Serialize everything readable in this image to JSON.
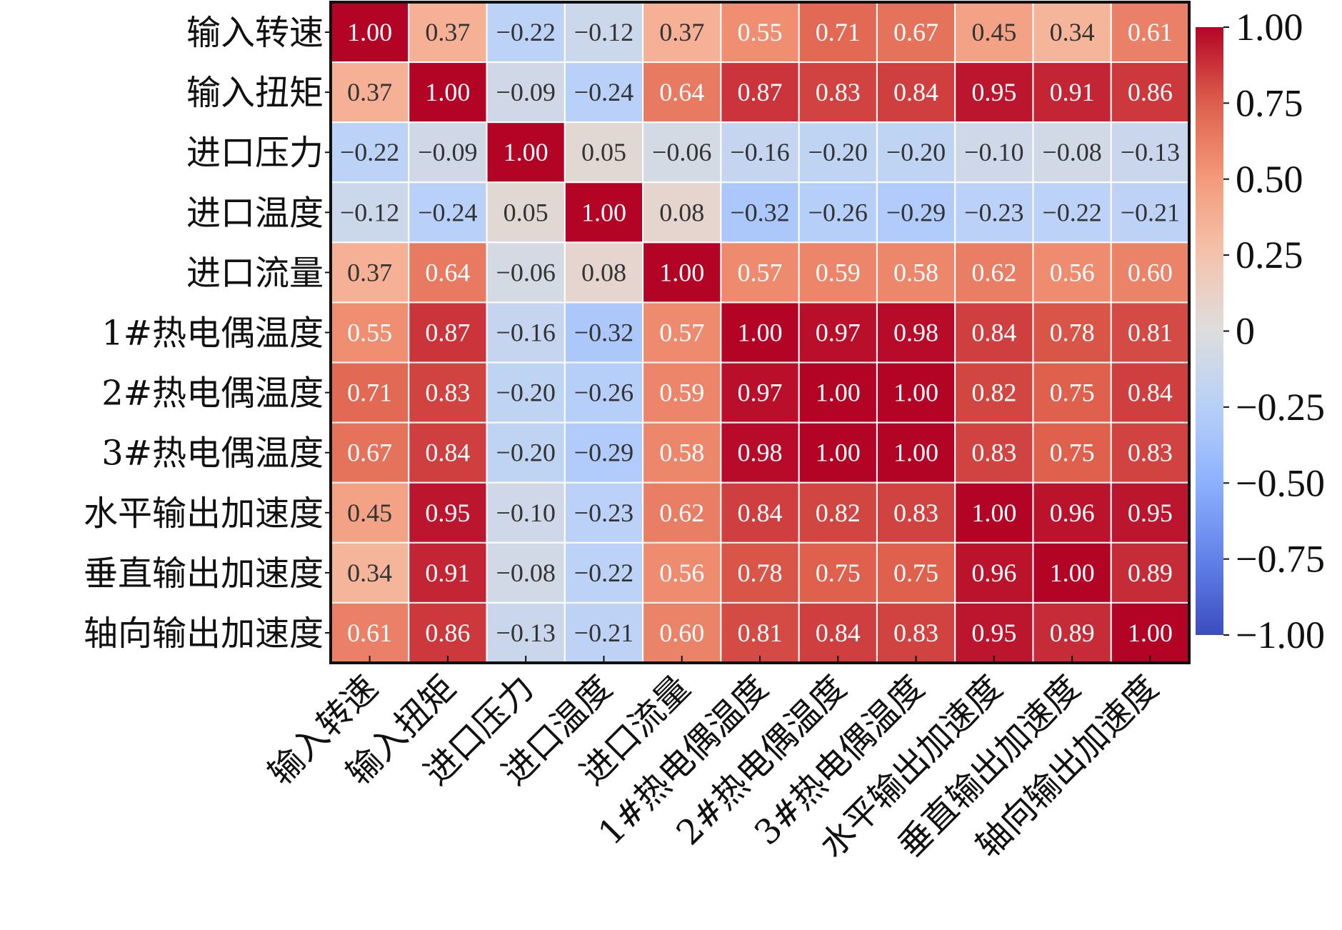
{
  "chart_data": {
    "type": "heatmap",
    "title": "",
    "labels": [
      "输入转速",
      "输入扭矩",
      "进口压力",
      "进口温度",
      "进口流量",
      "1#热电偶温度",
      "2#热电偶温度",
      "3#热电偶温度",
      "水平输出加速度",
      "垂直输出加速度",
      "轴向输出加速度"
    ],
    "values": [
      [
        1.0,
        0.37,
        -0.22,
        -0.12,
        0.37,
        0.55,
        0.71,
        0.67,
        0.45,
        0.34,
        0.61
      ],
      [
        0.37,
        1.0,
        -0.09,
        -0.24,
        0.64,
        0.87,
        0.83,
        0.84,
        0.95,
        0.91,
        0.86
      ],
      [
        -0.22,
        -0.09,
        1.0,
        0.05,
        -0.06,
        -0.16,
        -0.2,
        -0.2,
        -0.1,
        -0.08,
        -0.13
      ],
      [
        -0.12,
        -0.24,
        0.05,
        1.0,
        0.08,
        -0.32,
        -0.26,
        -0.29,
        -0.23,
        -0.22,
        -0.21
      ],
      [
        0.37,
        0.64,
        -0.06,
        0.08,
        1.0,
        0.57,
        0.59,
        0.58,
        0.62,
        0.56,
        0.6
      ],
      [
        0.55,
        0.87,
        -0.16,
        -0.32,
        0.57,
        1.0,
        0.97,
        0.98,
        0.84,
        0.78,
        0.81
      ],
      [
        0.71,
        0.83,
        -0.2,
        -0.26,
        0.59,
        0.97,
        1.0,
        1.0,
        0.82,
        0.75,
        0.84
      ],
      [
        0.67,
        0.84,
        -0.2,
        -0.29,
        0.58,
        0.98,
        1.0,
        1.0,
        0.83,
        0.75,
        0.83
      ],
      [
        0.45,
        0.95,
        -0.1,
        -0.23,
        0.62,
        0.84,
        0.82,
        0.83,
        1.0,
        0.96,
        0.95
      ],
      [
        0.34,
        0.91,
        -0.08,
        -0.22,
        0.56,
        0.78,
        0.75,
        0.75,
        0.96,
        1.0,
        0.89
      ],
      [
        0.61,
        0.86,
        -0.13,
        -0.21,
        0.6,
        0.81,
        0.84,
        0.83,
        0.95,
        0.89,
        1.0
      ]
    ],
    "colormap": "coolwarm",
    "vlim": [
      -1,
      1
    ],
    "colorbar_ticks": [
      "1.00",
      "0.75",
      "0.50",
      "0.25",
      "0",
      "−0.25",
      "−0.50",
      "−0.75",
      "−1.00"
    ],
    "colorbar_tick_values": [
      1,
      0.75,
      0.5,
      0.25,
      0,
      -0.25,
      -0.5,
      -0.75,
      -1
    ],
    "colors": {
      "low": "#3b4cc0",
      "mid": "#dddddd",
      "high": "#b40426"
    }
  }
}
